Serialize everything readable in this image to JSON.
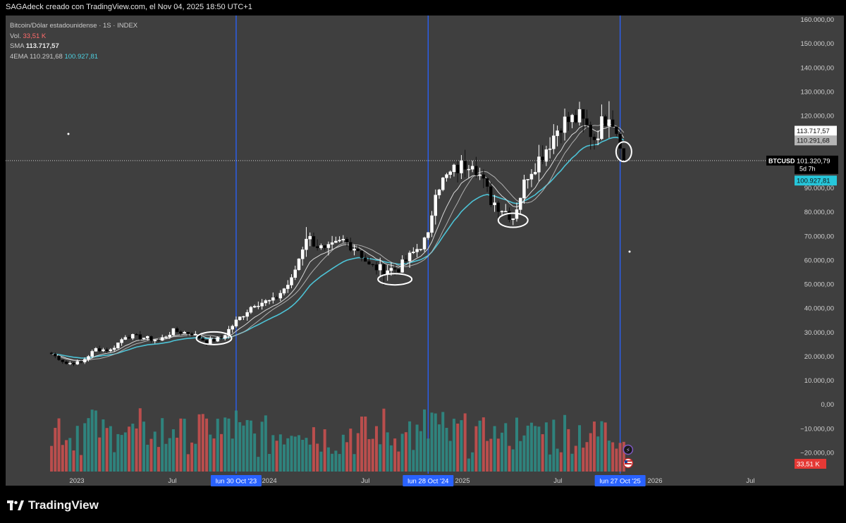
{
  "header": {
    "attribution": "SAGAdeck creado con TradingView.com, el Nov 04, 2025 18:50 UTC+1"
  },
  "legend": {
    "symbol_line": "Bitcoin/Dólar estadounidense · 1S · INDEX",
    "vol_label": "Vol.",
    "vol_value": "33,51 K",
    "sma_label": "SMA",
    "sma_value": "113.717,57",
    "ema_label": "4EMA",
    "ema_value1": "110.291,68",
    "ema_value2": "100.927,81"
  },
  "price_labels": {
    "sma": "113.717,57",
    "ema_fast": "110.291,68",
    "last": "101.320,79",
    "symbol": "BTCUSD",
    "countdown": "5d 7h",
    "ema_slow": "100.927,81",
    "volume": "33,51 K"
  },
  "footer": {
    "logo_text": "TradingView"
  },
  "colors": {
    "background": "#3f3f3f",
    "vertical_lines": "#2962ff",
    "ema_slow": "#4dc3d6",
    "sma": "#b0b0b0",
    "candle_up": "#ffffff",
    "candle_down": "#000000",
    "volume_up": "#2e8b84",
    "volume_down": "#c8504f"
  },
  "chart_data": {
    "type": "candlestick",
    "title": "Bitcoin/Dólar estadounidense · 1S · INDEX",
    "price_axis_ticks": [
      "160.000,00",
      "150.000,00",
      "140.000,00",
      "130.000,00",
      "120.000,00",
      "110.000,00",
      "90.000,00",
      "80.000,00",
      "70.000,00",
      "60.000,00",
      "50.000,00",
      "40.000,00",
      "30.000,00",
      "20.000,00",
      "10.000,00",
      "0,00",
      "−10.000,00",
      "−20.000,00"
    ],
    "time_axis_ticks": [
      "2023",
      "Jul",
      "2024",
      "Jul",
      "2025",
      "Jul",
      "2026",
      "Jul"
    ],
    "vertical_markers": [
      "lun 30 Oct '23",
      "lun 28 Oct '24",
      "lun 27 Oct '25"
    ],
    "ylim": [
      -25000,
      160000
    ],
    "price_path": [
      [
        "2022-11-14",
        21000
      ],
      [
        "2022-12-12",
        17000
      ],
      [
        "2023-01-09",
        17500
      ],
      [
        "2023-02-06",
        23000
      ],
      [
        "2023-03-06",
        22500
      ],
      [
        "2023-04-03",
        28500
      ],
      [
        "2023-05-01",
        28000
      ],
      [
        "2023-06-05",
        26500
      ],
      [
        "2023-07-03",
        30500
      ],
      [
        "2023-08-07",
        29500
      ],
      [
        "2023-09-04",
        26000
      ],
      [
        "2023-10-02",
        27500
      ],
      [
        "2023-10-30",
        34500
      ],
      [
        "2023-12-04",
        42000
      ],
      [
        "2024-01-08",
        43000
      ],
      [
        "2024-02-12",
        51500
      ],
      [
        "2024-03-11",
        70000
      ],
      [
        "2024-04-15",
        63500
      ],
      [
        "2024-05-20",
        68000
      ],
      [
        "2024-06-17",
        64500
      ],
      [
        "2024-07-08",
        57500
      ],
      [
        "2024-08-05",
        56000
      ],
      [
        "2024-09-02",
        56500
      ],
      [
        "2024-09-30",
        63000
      ],
      [
        "2024-10-28",
        69500
      ],
      [
        "2024-11-11",
        90000
      ],
      [
        "2024-12-16",
        97000
      ],
      [
        "2025-01-20",
        102000
      ],
      [
        "2025-02-24",
        85000
      ],
      [
        "2025-04-07",
        78000
      ],
      [
        "2025-05-05",
        96000
      ],
      [
        "2025-06-02",
        104000
      ],
      [
        "2025-07-07",
        117000
      ],
      [
        "2025-08-11",
        119000
      ],
      [
        "2025-09-08",
        111000
      ],
      [
        "2025-10-06",
        122000
      ],
      [
        "2025-10-27",
        110000
      ],
      [
        "2025-11-03",
        101320.79
      ]
    ],
    "moving_averages": [
      {
        "name": "SMA",
        "last": 113717.57
      },
      {
        "name": "4EMA fast",
        "last": 110291.68
      },
      {
        "name": "4EMA slow",
        "last": 100927.81
      }
    ],
    "last_price": 101320.79,
    "last_volume": "33,51 K",
    "annotations": [
      "ellipse",
      "ellipse",
      "ellipse",
      "ellipse"
    ]
  }
}
